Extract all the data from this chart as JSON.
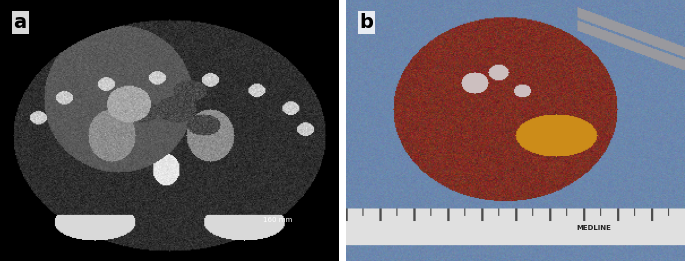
{
  "fig_width": 6.85,
  "fig_height": 2.62,
  "dpi": 100,
  "panel_a_label": "a",
  "panel_b_label": "b",
  "label_fontsize": 14,
  "label_fontweight": "bold",
  "label_color": "#000000",
  "label_bg": "#ffffff",
  "panel_a_bg": "#111111",
  "panel_b_bg": "#7090b0",
  "border_color": "#cccccc",
  "border_linewidth": 1.0,
  "ct_annotation": "160 mm",
  "ct_annotation_color": "#ffffff",
  "ct_annotation_fontsize": 5,
  "ruler_label": "MEDLINE",
  "ruler_label_fontsize": 5,
  "ruler_color": "#dddddd",
  "outer_border_color": "#bbbbbb",
  "outer_border_lw": 1.5
}
